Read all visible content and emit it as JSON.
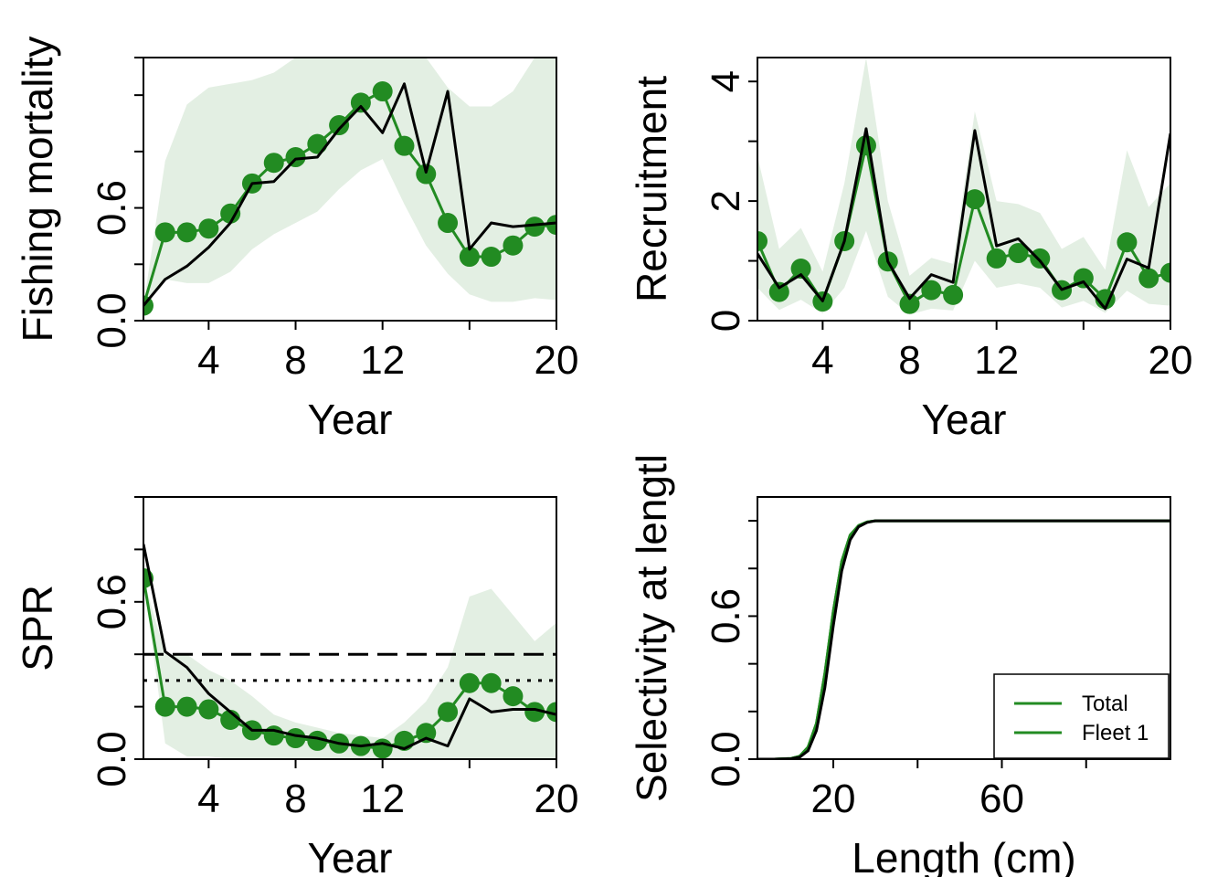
{
  "colors": {
    "green": "#228B22",
    "ribbon": "#e3efe3",
    "black": "#000000"
  },
  "chart_data": [
    {
      "id": "fishing-mortality",
      "type": "line",
      "xlabel": "Year",
      "ylabel": "Fishing mortality",
      "xlim": [
        1,
        20
      ],
      "ylim": [
        0,
        1.4
      ],
      "x_ticks": [
        4,
        8,
        12,
        16,
        20
      ],
      "x_tick_labels": [
        "4",
        "8",
        "12",
        "",
        "20"
      ],
      "y_ticks": [
        0,
        0.3,
        0.6,
        0.9,
        1.2,
        1.4
      ],
      "y_tick_labels": [
        "0.0",
        "",
        "0.6",
        "",
        "",
        ""
      ],
      "x": [
        1,
        2,
        3,
        4,
        5,
        6,
        7,
        8,
        9,
        10,
        11,
        12,
        13,
        14,
        15,
        16,
        17,
        18,
        19,
        20
      ],
      "series": [
        {
          "name": "",
          "kind": "points-line",
          "color": "green",
          "values": [
            0.08,
            0.47,
            0.47,
            0.49,
            0.57,
            0.73,
            0.84,
            0.87,
            0.94,
            1.04,
            1.16,
            1.22,
            0.93,
            0.78,
            0.52,
            0.34,
            0.34,
            0.4,
            0.5,
            0.51
          ]
        },
        {
          "name": "",
          "kind": "line",
          "color": "black",
          "values": [
            0.08,
            0.22,
            0.29,
            0.39,
            0.52,
            0.73,
            0.74,
            0.86,
            0.87,
            1.02,
            1.14,
            1.0,
            1.26,
            0.79,
            1.22,
            0.38,
            0.52,
            0.5,
            0.51,
            0.52
          ]
        }
      ],
      "ribbon": {
        "color": "ribbon",
        "lower": [
          0.08,
          0.22,
          0.2,
          0.2,
          0.26,
          0.38,
          0.46,
          0.52,
          0.58,
          0.7,
          0.8,
          0.86,
          0.62,
          0.4,
          0.25,
          0.14,
          0.1,
          0.1,
          0.12,
          0.11
        ],
        "upper": [
          0.08,
          0.85,
          1.15,
          1.24,
          1.26,
          1.28,
          1.32,
          1.4,
          1.4,
          1.4,
          1.4,
          1.4,
          1.4,
          1.4,
          1.24,
          1.14,
          1.14,
          1.22,
          1.4,
          1.4
        ]
      }
    },
    {
      "id": "recruitment",
      "type": "line",
      "xlabel": "Year",
      "ylabel": "Recruitment",
      "xlim": [
        1,
        20
      ],
      "ylim": [
        0,
        4.4
      ],
      "x_ticks": [
        4,
        8,
        12,
        16,
        20
      ],
      "x_tick_labels": [
        "4",
        "8",
        "12",
        "",
        "20"
      ],
      "y_ticks": [
        0,
        1,
        2,
        3,
        4
      ],
      "y_tick_labels": [
        "0",
        "",
        "2",
        "",
        "4"
      ],
      "x": [
        1,
        2,
        3,
        4,
        5,
        6,
        7,
        8,
        9,
        10,
        11,
        12,
        13,
        14,
        15,
        16,
        17,
        18,
        19,
        20
      ],
      "series": [
        {
          "name": "",
          "kind": "points-line",
          "color": "green",
          "values": [
            1.33,
            0.48,
            0.87,
            0.32,
            1.33,
            2.93,
            0.99,
            0.28,
            0.51,
            0.43,
            2.03,
            1.04,
            1.13,
            1.04,
            0.51,
            0.71,
            0.36,
            1.31,
            0.71,
            0.8
          ]
        },
        {
          "name": "",
          "kind": "line",
          "color": "black",
          "values": [
            1.12,
            0.55,
            0.77,
            0.33,
            1.33,
            3.21,
            0.99,
            0.37,
            0.77,
            0.64,
            3.18,
            1.25,
            1.37,
            1.0,
            0.52,
            0.65,
            0.2,
            1.03,
            0.88,
            3.13
          ]
        }
      ],
      "ribbon": {
        "color": "ribbon",
        "lower": [
          0.55,
          0.18,
          0.35,
          0.12,
          0.55,
          1.5,
          0.4,
          0.1,
          0.2,
          0.17,
          1.0,
          0.55,
          0.62,
          0.55,
          0.22,
          0.33,
          0.13,
          0.5,
          0.28,
          0.25
        ],
        "upper": [
          2.75,
          1.2,
          1.55,
          0.82,
          2.3,
          4.4,
          2.0,
          0.75,
          1.05,
          0.95,
          3.5,
          2.0,
          1.95,
          1.8,
          1.2,
          1.4,
          0.85,
          2.85,
          1.9,
          2.3
        ]
      }
    },
    {
      "id": "spr",
      "type": "line",
      "xlabel": "Year",
      "ylabel": "SPR",
      "xlim": [
        1,
        20
      ],
      "ylim": [
        0,
        1.0
      ],
      "x_ticks": [
        4,
        8,
        12,
        16,
        20
      ],
      "x_tick_labels": [
        "4",
        "8",
        "12",
        "",
        "20"
      ],
      "y_ticks": [
        0,
        0.2,
        0.4,
        0.6,
        0.8,
        1.0
      ],
      "y_tick_labels": [
        "0.0",
        "",
        "",
        "0.6",
        "",
        ""
      ],
      "reference_lines": [
        {
          "value": 0.4,
          "style": "dashed"
        },
        {
          "value": 0.3,
          "style": "dotted"
        }
      ],
      "x": [
        1,
        2,
        3,
        4,
        5,
        6,
        7,
        8,
        9,
        10,
        11,
        12,
        13,
        14,
        15,
        16,
        17,
        18,
        19,
        20
      ],
      "series": [
        {
          "name": "",
          "kind": "points-line",
          "color": "green",
          "values": [
            0.69,
            0.2,
            0.2,
            0.19,
            0.15,
            0.11,
            0.09,
            0.08,
            0.07,
            0.06,
            0.05,
            0.04,
            0.07,
            0.1,
            0.18,
            0.29,
            0.29,
            0.24,
            0.18,
            0.18
          ]
        },
        {
          "name": "",
          "kind": "line",
          "color": "black",
          "values": [
            0.82,
            0.41,
            0.35,
            0.25,
            0.18,
            0.11,
            0.11,
            0.09,
            0.08,
            0.06,
            0.05,
            0.06,
            0.04,
            0.08,
            0.05,
            0.23,
            0.18,
            0.19,
            0.19,
            0.17
          ]
        }
      ],
      "ribbon": {
        "color": "ribbon",
        "lower": [
          0.69,
          0.06,
          0.01,
          0.01,
          0.0,
          0.0,
          0.0,
          0.0,
          0.0,
          0.0,
          0.0,
          0.0,
          0.0,
          0.0,
          0.0,
          0.0,
          0.0,
          0.0,
          0.0,
          0.0
        ],
        "upper": [
          0.69,
          0.4,
          0.4,
          0.34,
          0.3,
          0.24,
          0.17,
          0.14,
          0.12,
          0.1,
          0.09,
          0.08,
          0.14,
          0.22,
          0.35,
          0.62,
          0.65,
          0.55,
          0.45,
          0.52
        ]
      }
    },
    {
      "id": "selectivity",
      "type": "line",
      "xlabel": "Length (cm)",
      "ylabel": "Selectivity at lengtl",
      "xlim": [
        2,
        100
      ],
      "ylim": [
        0,
        1.1
      ],
      "x_ticks": [
        20,
        40,
        60,
        80
      ],
      "x_tick_labels": [
        "20",
        "",
        "60",
        ""
      ],
      "y_ticks": [
        0,
        0.2,
        0.4,
        0.6,
        0.8,
        1.0
      ],
      "y_tick_labels": [
        "0.0",
        "",
        "",
        "0.6",
        "",
        ""
      ],
      "legend": {
        "position": "bottomright",
        "entries": [
          "Total",
          "Fleet 1"
        ]
      },
      "x": [
        2,
        6,
        10,
        12,
        14,
        16,
        18,
        20,
        22,
        24,
        26,
        28,
        30,
        34,
        40,
        60,
        80,
        100
      ],
      "series": [
        {
          "name": "Total",
          "kind": "line",
          "color": "green",
          "values": [
            0.0,
            0.0,
            0.003,
            0.012,
            0.05,
            0.15,
            0.36,
            0.62,
            0.83,
            0.94,
            0.98,
            0.995,
            1.0,
            1.0,
            1.0,
            1.0,
            1.0,
            1.0
          ]
        },
        {
          "name": "Fleet 1",
          "kind": "line",
          "color": "green",
          "values": [
            0.0,
            0.0,
            0.003,
            0.012,
            0.05,
            0.15,
            0.36,
            0.62,
            0.83,
            0.94,
            0.98,
            0.995,
            1.0,
            1.0,
            1.0,
            1.0,
            1.0,
            1.0
          ]
        },
        {
          "name": "",
          "kind": "line",
          "color": "black",
          "values": [
            0.0,
            0.0,
            0.002,
            0.008,
            0.035,
            0.12,
            0.3,
            0.56,
            0.79,
            0.92,
            0.975,
            0.993,
            1.0,
            1.0,
            1.0,
            1.0,
            1.0,
            1.0
          ]
        }
      ]
    }
  ]
}
